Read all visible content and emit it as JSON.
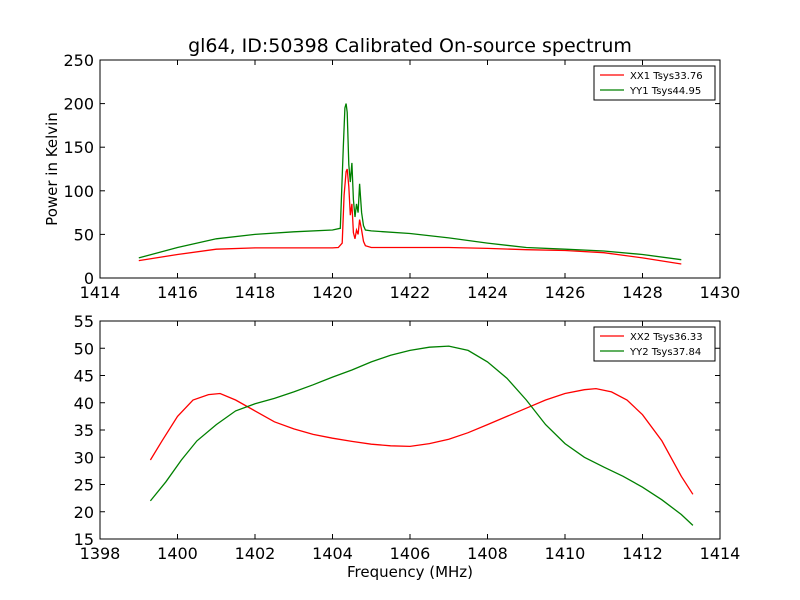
{
  "title": "gl64, ID:50398 Calibrated On-source spectrum",
  "chart_data": [
    {
      "type": "line",
      "ylabel": "Power in Kelvin",
      "xlabel": "",
      "xlim": [
        1414,
        1430
      ],
      "ylim": [
        0,
        250
      ],
      "xticks": [
        "1414",
        "1416",
        "1418",
        "1420",
        "1422",
        "1424",
        "1426",
        "1428",
        "1430"
      ],
      "yticks": [
        "0",
        "50",
        "100",
        "150",
        "200",
        "250"
      ],
      "legend_position": "top-right",
      "series": [
        {
          "name": "XX1 Tsys33.76",
          "color": "#ff0000",
          "x": [
            1415,
            1416,
            1417,
            1418,
            1419,
            1420,
            1420.15,
            1420.25,
            1420.3,
            1420.35,
            1420.38,
            1420.42,
            1420.46,
            1420.5,
            1420.54,
            1420.58,
            1420.62,
            1420.66,
            1420.7,
            1420.75,
            1420.8,
            1420.85,
            1421,
            1422,
            1423,
            1424,
            1425,
            1426,
            1427,
            1428,
            1429
          ],
          "values": [
            20,
            27,
            33,
            34.5,
            34.5,
            34.5,
            35,
            40,
            95,
            122,
            125,
            105,
            72,
            85,
            52,
            45,
            55,
            50,
            67,
            55,
            42,
            37,
            35,
            35,
            35,
            34,
            32.5,
            31.5,
            29,
            23,
            16
          ]
        },
        {
          "name": "YY1 Tsys44.95",
          "color": "#008000",
          "x": [
            1415,
            1416,
            1417,
            1418,
            1419,
            1420,
            1420.2,
            1420.28,
            1420.32,
            1420.35,
            1420.38,
            1420.42,
            1420.46,
            1420.5,
            1420.54,
            1420.58,
            1420.62,
            1420.66,
            1420.7,
            1420.75,
            1420.8,
            1420.85,
            1421,
            1422,
            1423,
            1424,
            1425,
            1426,
            1427,
            1428,
            1429
          ],
          "values": [
            23,
            35,
            45,
            50,
            53,
            55,
            57,
            150,
            195,
            200,
            190,
            130,
            110,
            132,
            90,
            70,
            85,
            75,
            108,
            75,
            60,
            55,
            54,
            51,
            46,
            40,
            35,
            33,
            31,
            27,
            21
          ]
        }
      ]
    },
    {
      "type": "line",
      "ylabel": "",
      "xlabel": "Frequency (MHz)",
      "xlim": [
        1398,
        1414
      ],
      "ylim": [
        15,
        55
      ],
      "xticks": [
        "1398",
        "1400",
        "1402",
        "1404",
        "1406",
        "1408",
        "1410",
        "1412",
        "1414"
      ],
      "yticks": [
        "15",
        "20",
        "25",
        "30",
        "35",
        "40",
        "45",
        "50",
        "55"
      ],
      "legend_position": "top-right",
      "series": [
        {
          "name": "XX2 Tsys36.33",
          "color": "#ff0000",
          "x": [
            1399.3,
            1399.6,
            1400,
            1400.4,
            1400.8,
            1401.1,
            1401.5,
            1402,
            1402.5,
            1403,
            1403.5,
            1404,
            1404.5,
            1405,
            1405.5,
            1406,
            1406.5,
            1407,
            1407.5,
            1408,
            1408.5,
            1409,
            1409.5,
            1410,
            1410.5,
            1410.8,
            1411.2,
            1411.6,
            1412,
            1412.5,
            1413,
            1413.3
          ],
          "values": [
            29.5,
            33,
            37.5,
            40.5,
            41.5,
            41.7,
            40.5,
            38.5,
            36.5,
            35.2,
            34.2,
            33.5,
            32.9,
            32.4,
            32.1,
            32,
            32.5,
            33.3,
            34.5,
            36,
            37.5,
            39,
            40.5,
            41.7,
            42.4,
            42.6,
            42,
            40.5,
            37.8,
            33,
            26.5,
            23.2
          ]
        },
        {
          "name": "YY2 Tsys37.84",
          "color": "#008000",
          "x": [
            1399.3,
            1399.7,
            1400.1,
            1400.5,
            1401,
            1401.5,
            1402,
            1402.5,
            1403,
            1403.5,
            1404,
            1404.5,
            1405,
            1405.5,
            1406,
            1406.5,
            1407,
            1407.5,
            1408,
            1408.5,
            1409,
            1409.5,
            1410,
            1410.5,
            1411,
            1411.5,
            1412,
            1412.5,
            1413,
            1413.3
          ],
          "values": [
            22,
            25.5,
            29.5,
            33,
            36,
            38.5,
            39.8,
            40.8,
            42,
            43.3,
            44.7,
            46,
            47.5,
            48.7,
            49.6,
            50.2,
            50.4,
            49.6,
            47.5,
            44.5,
            40.5,
            36,
            32.5,
            30,
            28.2,
            26.5,
            24.5,
            22.2,
            19.5,
            17.5
          ]
        }
      ]
    }
  ]
}
